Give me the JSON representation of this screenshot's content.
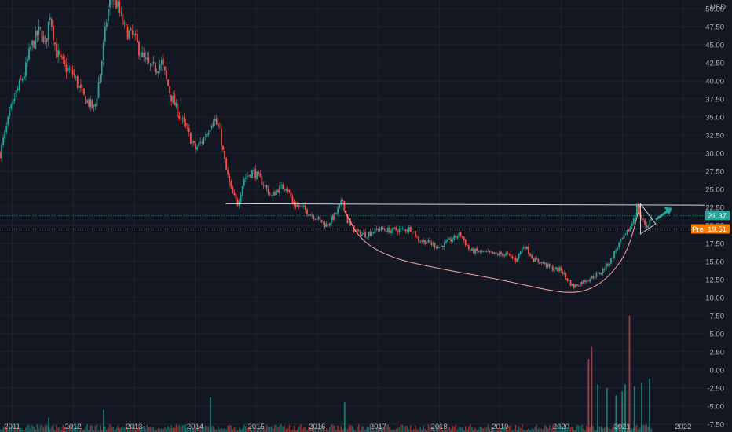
{
  "chart_data": {
    "type": "candlestick",
    "currency": "USD",
    "y_ticks": [
      50.0,
      47.5,
      45.0,
      42.5,
      40.0,
      37.5,
      35.0,
      32.5,
      30.0,
      27.5,
      25.0,
      22.5,
      20.0,
      17.5,
      15.0,
      12.5,
      10.0,
      7.5,
      5.0,
      2.5,
      0.0,
      -2.5,
      -5.0,
      -7.5
    ],
    "y_tick_labels": [
      "50.00",
      "47.50",
      "45.00",
      "42.50",
      "40.00",
      "37.50",
      "35.00",
      "32.50",
      "30.00",
      "27.50",
      "25.00",
      "22.50",
      "20.00",
      "17.50",
      "15.00",
      "12.50",
      "10.00",
      "7.50",
      "5.00",
      "2.50",
      "0.00",
      "-2.50",
      "-5.00",
      "-7.50"
    ],
    "x_ticks": [
      "2011",
      "2012",
      "2013",
      "2014",
      "2015",
      "2016",
      "2017",
      "2018",
      "2019",
      "2020",
      "2021",
      "2022"
    ],
    "ylim": [
      -8.6,
      51.2
    ],
    "xlim": [
      2010.8,
      2022.35
    ],
    "last_price": {
      "label": "21.37",
      "value": 21.37,
      "color": "#26a69a"
    },
    "pre_market": {
      "tag": "Pre",
      "label": "19.51",
      "value": 19.51,
      "color": "#f57c00"
    },
    "price_path": [
      [
        2010.8,
        30.0
      ],
      [
        2010.95,
        35.0
      ],
      [
        2011.05,
        38.0
      ],
      [
        2011.2,
        41.0
      ],
      [
        2011.3,
        44.5
      ],
      [
        2011.45,
        47.0
      ],
      [
        2011.55,
        45.0
      ],
      [
        2011.62,
        49.5
      ],
      [
        2011.72,
        44.0
      ],
      [
        2011.85,
        42.0
      ],
      [
        2012.0,
        41.0
      ],
      [
        2012.15,
        38.0
      ],
      [
        2012.25,
        37.0
      ],
      [
        2012.35,
        36.0
      ],
      [
        2012.45,
        41.5
      ],
      [
        2012.55,
        48.5
      ],
      [
        2012.62,
        52.0
      ],
      [
        2012.72,
        50.5
      ],
      [
        2012.85,
        47.0
      ],
      [
        2013.0,
        46.0
      ],
      [
        2013.15,
        43.0
      ],
      [
        2013.3,
        41.5
      ],
      [
        2013.45,
        42.5
      ],
      [
        2013.6,
        38.0
      ],
      [
        2013.75,
        35.0
      ],
      [
        2013.9,
        32.5
      ],
      [
        2014.0,
        30.5
      ],
      [
        2014.1,
        31.5
      ],
      [
        2014.2,
        33.0
      ],
      [
        2014.3,
        35.0
      ],
      [
        2014.4,
        33.0
      ],
      [
        2014.5,
        28.0
      ],
      [
        2014.6,
        24.5
      ],
      [
        2014.7,
        23.0
      ],
      [
        2014.8,
        26.5
      ],
      [
        2014.95,
        27.5
      ],
      [
        2015.1,
        26.0
      ],
      [
        2015.25,
        24.0
      ],
      [
        2015.35,
        25.0
      ],
      [
        2015.5,
        25.5
      ],
      [
        2015.6,
        23.0
      ],
      [
        2015.75,
        22.5
      ],
      [
        2015.9,
        21.5
      ],
      [
        2016.0,
        21.0
      ],
      [
        2016.15,
        20.0
      ],
      [
        2016.3,
        21.5
      ],
      [
        2016.42,
        23.5
      ],
      [
        2016.5,
        20.5
      ],
      [
        2016.65,
        19.0
      ],
      [
        2016.8,
        18.7
      ],
      [
        2017.0,
        19.5
      ],
      [
        2017.2,
        19.3
      ],
      [
        2017.4,
        19.4
      ],
      [
        2017.55,
        19.6
      ],
      [
        2017.65,
        18.0
      ],
      [
        2017.8,
        17.7
      ],
      [
        2018.0,
        17.0
      ],
      [
        2018.2,
        18.0
      ],
      [
        2018.35,
        18.8
      ],
      [
        2018.5,
        16.5
      ],
      [
        2018.7,
        16.3
      ],
      [
        2018.9,
        16.0
      ],
      [
        2019.1,
        16.0
      ],
      [
        2019.25,
        15.2
      ],
      [
        2019.4,
        17.3
      ],
      [
        2019.55,
        15.2
      ],
      [
        2019.7,
        14.8
      ],
      [
        2019.85,
        14.0
      ],
      [
        2020.0,
        13.8
      ],
      [
        2020.1,
        12.5
      ],
      [
        2020.2,
        11.5
      ],
      [
        2020.35,
        12.2
      ],
      [
        2020.5,
        12.8
      ],
      [
        2020.65,
        13.5
      ],
      [
        2020.8,
        15.0
      ],
      [
        2020.95,
        17.5
      ],
      [
        2021.05,
        18.5
      ],
      [
        2021.15,
        20.0
      ],
      [
        2021.25,
        22.8
      ],
      [
        2021.3,
        21.2
      ],
      [
        2021.4,
        19.8
      ],
      [
        2021.5,
        21.37
      ]
    ],
    "volume_bars": [
      {
        "x": 2011.6,
        "v": -6.6
      },
      {
        "x": 2012.5,
        "v": -5.5
      },
      {
        "x": 2014.25,
        "v": -3.8
      },
      {
        "x": 2016.45,
        "v": -4.5
      },
      {
        "x": 2020.45,
        "v": 1.5
      },
      {
        "x": 2020.5,
        "v": 3.2
      },
      {
        "x": 2020.6,
        "v": -2.0
      },
      {
        "x": 2020.75,
        "v": -2.5
      },
      {
        "x": 2020.9,
        "v": -3.5
      },
      {
        "x": 2021.0,
        "v": -3.0
      },
      {
        "x": 2021.05,
        "v": -2.0
      },
      {
        "x": 2021.12,
        "v": 7.5
      },
      {
        "x": 2021.2,
        "v": -2.3
      },
      {
        "x": 2021.32,
        "v": -1.8
      },
      {
        "x": 2021.45,
        "v": -1.2
      }
    ],
    "annotations": {
      "resistance_line": {
        "from": [
          2014.5,
          23.0
        ],
        "to": [
          2022.35,
          22.8
        ],
        "color": "#d1d4dc"
      },
      "cup_curve": [
        [
          2016.45,
          22.0
        ],
        [
          2016.7,
          18.0
        ],
        [
          2017.2,
          15.5
        ],
        [
          2018.0,
          14.0
        ],
        [
          2019.0,
          12.5
        ],
        [
          2019.8,
          11.0
        ],
        [
          2020.2,
          10.6
        ],
        [
          2020.5,
          11.2
        ],
        [
          2020.8,
          13.0
        ],
        [
          2021.1,
          16.5
        ],
        [
          2021.3,
          23.0
        ]
      ],
      "triangle": [
        [
          2021.3,
          23.0
        ],
        [
          2021.55,
          20.2
        ],
        [
          2021.3,
          18.8
        ]
      ],
      "arrow": {
        "from": [
          2021.55,
          20.8
        ],
        "to": [
          2021.78,
          22.2
        ],
        "color": "#26a69a"
      }
    },
    "colors": {
      "up": "#26a69a",
      "down": "#ef5350",
      "background": "#131722",
      "grid": "#2a2e39",
      "text": "#b2b5be",
      "curve": "#f8a5a5"
    }
  }
}
